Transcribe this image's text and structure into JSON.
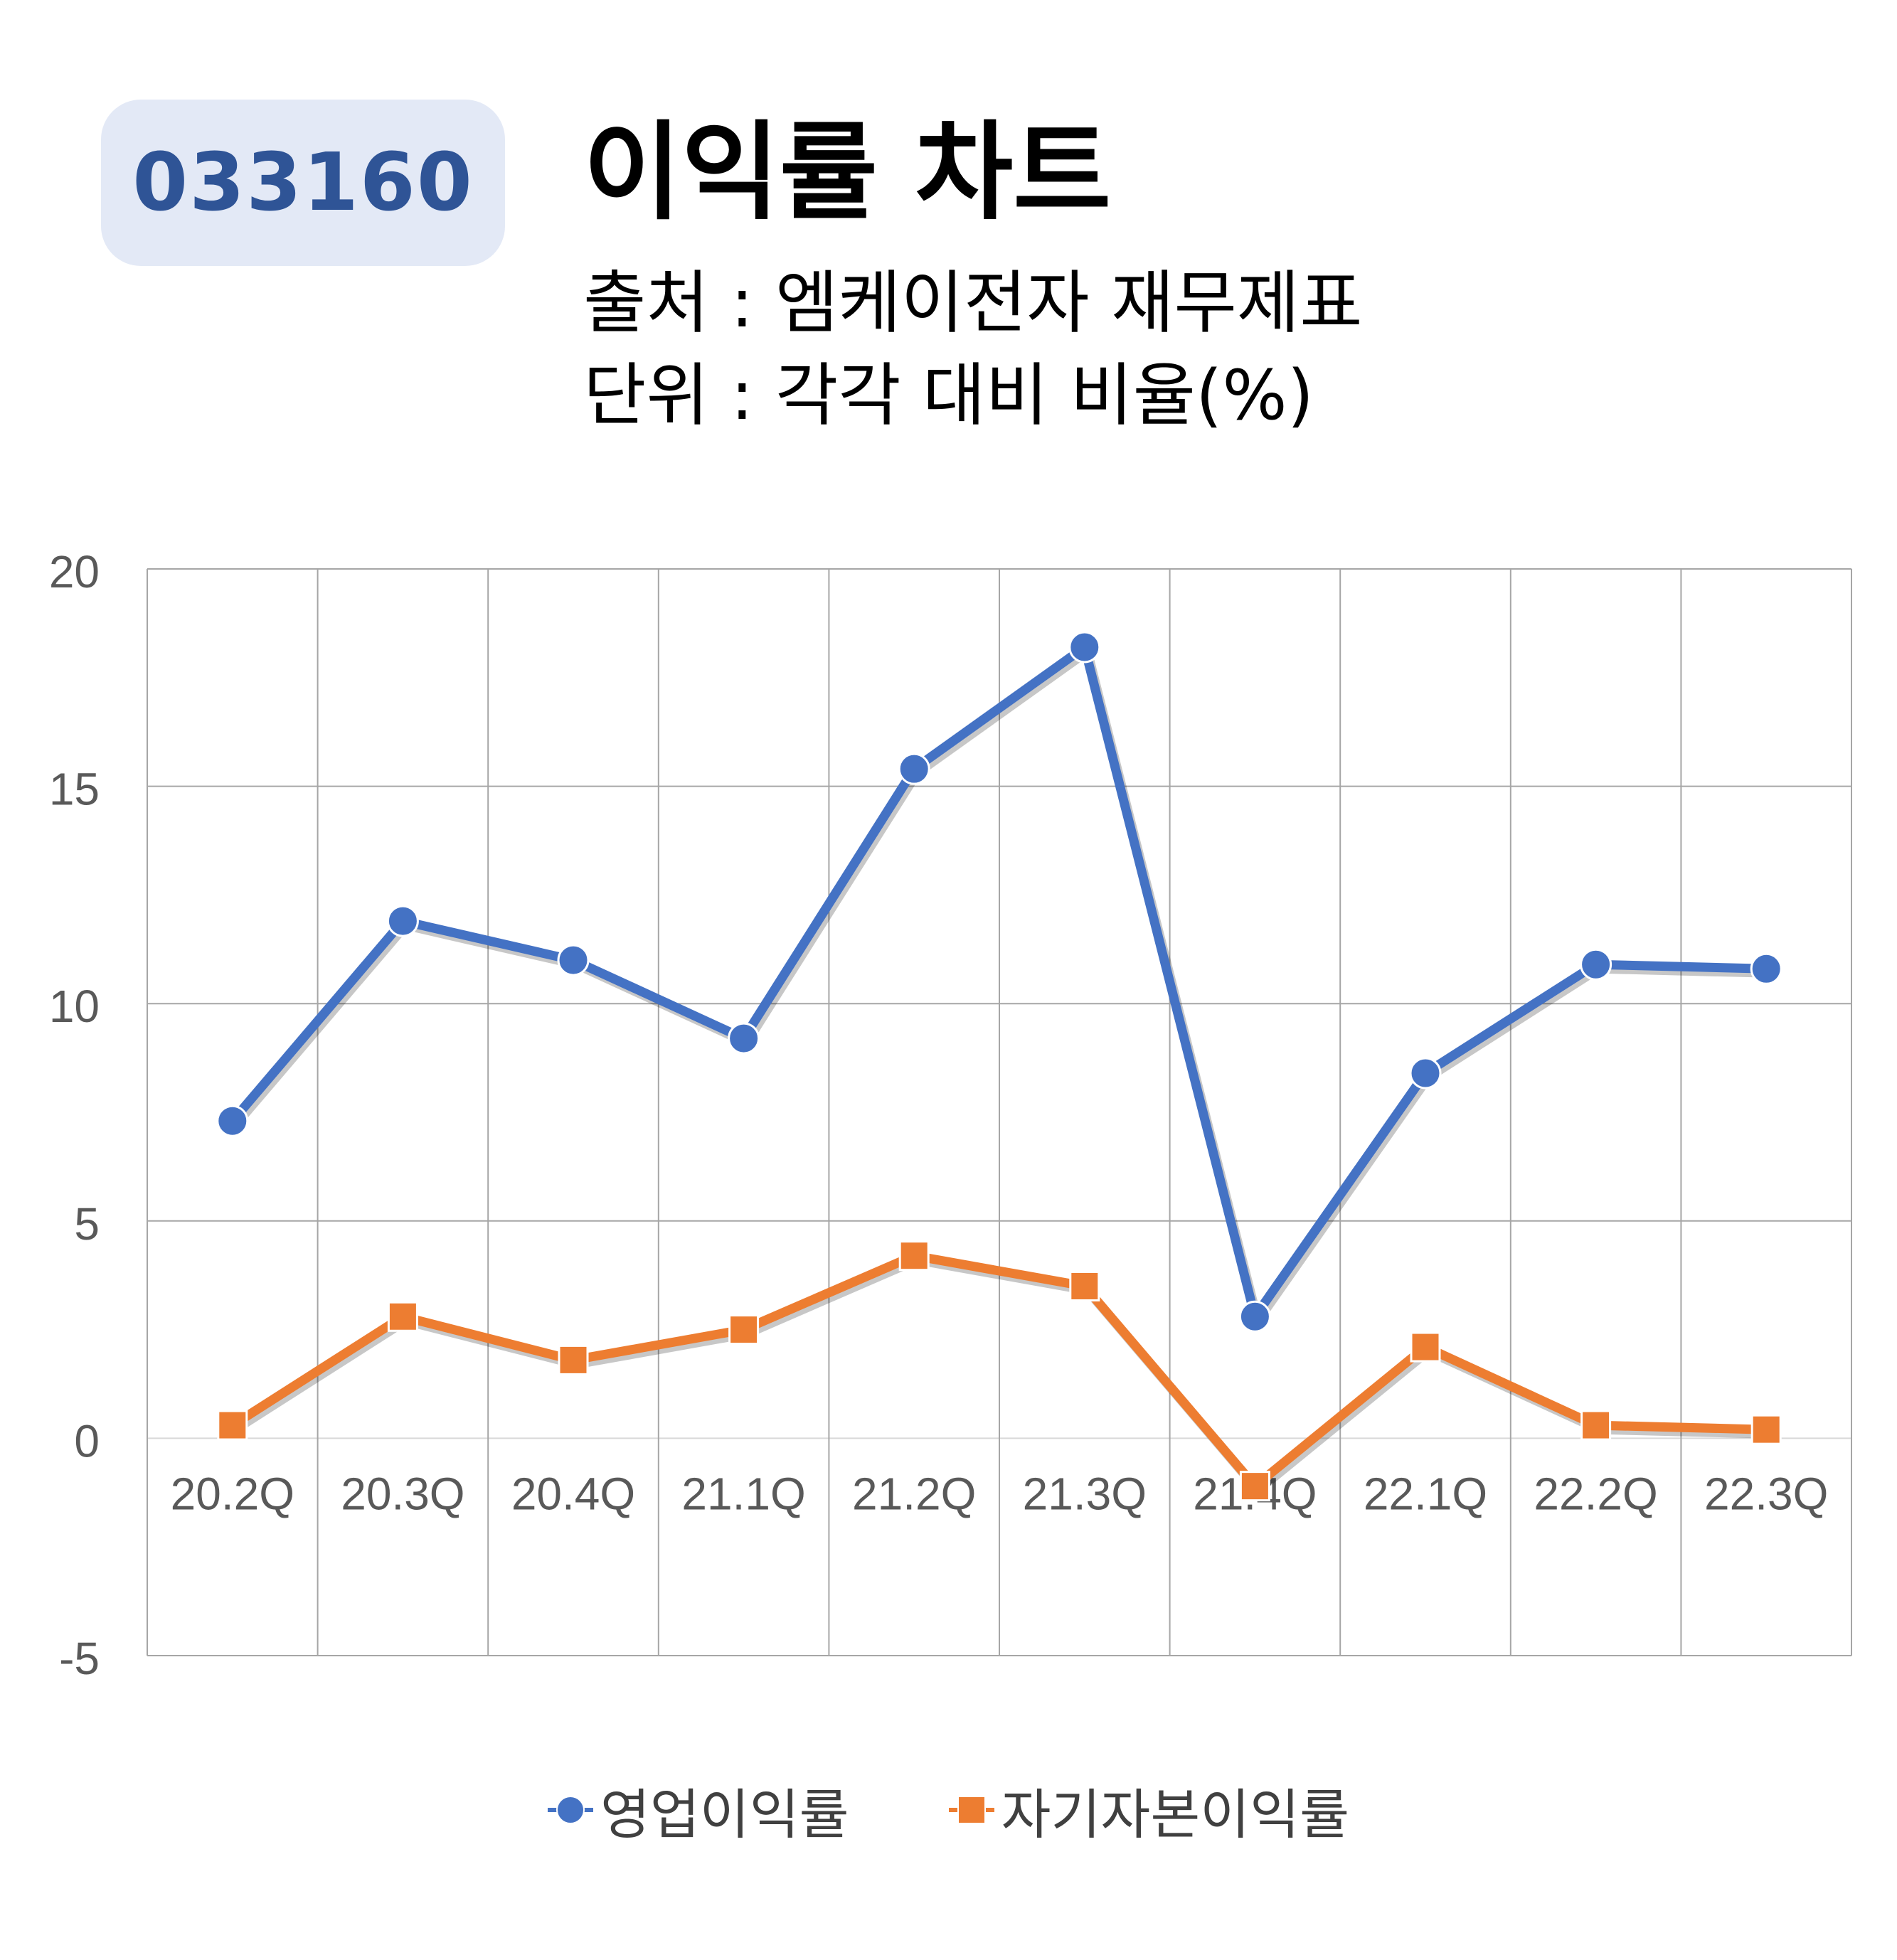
{
  "header": {
    "code": "033160",
    "title": "이익률 차트",
    "source_line": "출처 : 엠케이전자 재무제표",
    "unit_line": "단위 : 각각 대비 비율(%)"
  },
  "colors": {
    "operating_margin": "#4472c4",
    "roe": "#ed7d31",
    "badge_bg": "#e3e9f6",
    "badge_text": "#2f5496"
  },
  "chart_data": {
    "type": "line",
    "title": "이익률 차트",
    "categories": [
      "20.2Q",
      "20.3Q",
      "20.4Q",
      "21.1Q",
      "21.2Q",
      "21.3Q",
      "21.4Q",
      "22.1Q",
      "22.2Q",
      "22.3Q"
    ],
    "series": [
      {
        "name": "영업이익률",
        "marker": "circle",
        "values": [
          7.3,
          11.9,
          11.0,
          9.2,
          15.4,
          18.2,
          2.8,
          8.4,
          10.9,
          10.8
        ]
      },
      {
        "name": "자기자본이익률",
        "marker": "square",
        "values": [
          0.3,
          2.8,
          1.8,
          2.5,
          4.2,
          3.5,
          -1.1,
          2.1,
          0.3,
          0.2
        ]
      }
    ],
    "ylim": [
      -5,
      20
    ],
    "yticks": [
      -5,
      0,
      5,
      10,
      15,
      20
    ],
    "grid": true,
    "legend_position": "bottom",
    "xlabel": "",
    "ylabel": ""
  }
}
